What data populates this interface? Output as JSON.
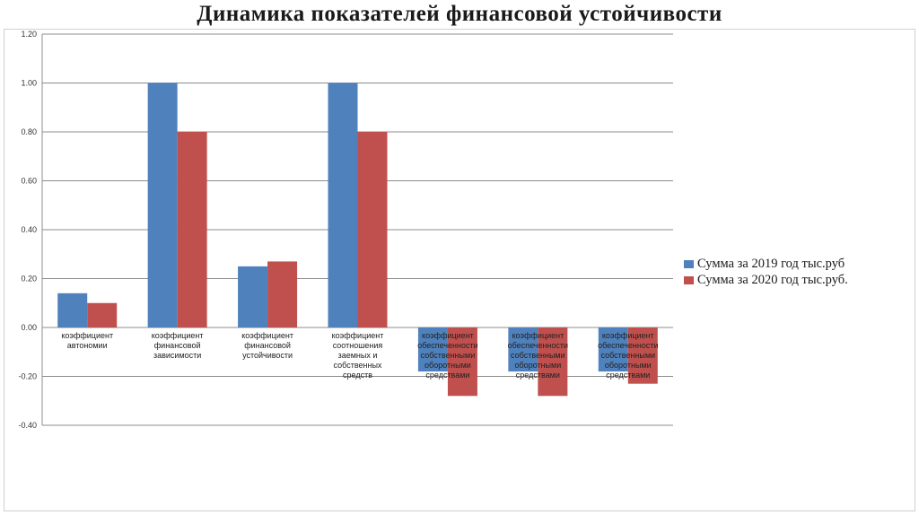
{
  "chart_data": {
    "type": "bar",
    "title": "Динамика показателей финансовой устойчивости",
    "xlabel": "",
    "ylabel": "",
    "ylim": [
      -0.4,
      1.2
    ],
    "yticks": [
      "1.20",
      "1.00",
      "0.80",
      "0.60",
      "0.40",
      "0.20",
      "0.00",
      "-0.20",
      "-0.40"
    ],
    "ytick_values": [
      1.2,
      1.0,
      0.8,
      0.6,
      0.4,
      0.2,
      0.0,
      -0.2,
      -0.4
    ],
    "grid": true,
    "legend_position": "right",
    "categories": [
      [
        "коэффициент",
        "автономии"
      ],
      [
        "коэффициент",
        "финансовой",
        "зависимости"
      ],
      [
        "коэффициент",
        "финансовой",
        "устойчивости"
      ],
      [
        "коэффициент",
        "соотношения",
        "заемных и",
        "собственных",
        "средств"
      ],
      [
        "коэффициент",
        "обеспеченности",
        "собственными",
        "оборотными",
        "средствами"
      ],
      [
        "коэффициент",
        "обеспеченности",
        "собственными",
        "оборотными",
        "средствами"
      ],
      [
        "коэффициент",
        "обеспеченности",
        "собственными",
        "оборотными",
        "средствами"
      ]
    ],
    "series": [
      {
        "name": "Сумма за 2019 год тыс.руб",
        "color": "#4f81bd",
        "values": [
          0.14,
          1.0,
          0.25,
          1.0,
          -0.18,
          -0.18,
          -0.18
        ]
      },
      {
        "name": "Сумма за 2020 год тыс.руб.",
        "color": "#c0504d",
        "values": [
          0.1,
          0.8,
          0.27,
          0.8,
          -0.28,
          -0.28,
          -0.23
        ]
      }
    ]
  }
}
